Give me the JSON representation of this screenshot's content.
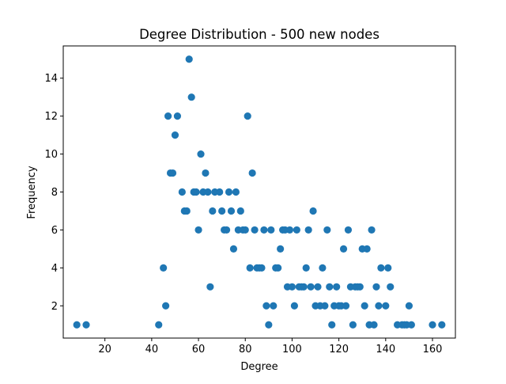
{
  "chart_data": {
    "type": "scatter",
    "title": "Degree Distribution - 500 new nodes",
    "xlabel": "Degree",
    "ylabel": "Frequency",
    "xlim": [
      2.2,
      169.8
    ],
    "ylim": [
      0.3,
      15.7
    ],
    "xticks": [
      20,
      40,
      60,
      80,
      100,
      120,
      140,
      160
    ],
    "yticks": [
      2,
      4,
      6,
      8,
      10,
      12,
      14
    ],
    "grid": false,
    "marker_color": "#1f77b4",
    "points": [
      [
        8,
        1
      ],
      [
        12,
        1
      ],
      [
        43,
        1
      ],
      [
        45,
        4
      ],
      [
        46,
        2
      ],
      [
        47,
        12
      ],
      [
        48,
        9
      ],
      [
        49,
        9
      ],
      [
        50,
        11
      ],
      [
        51,
        12
      ],
      [
        53,
        8
      ],
      [
        54,
        7
      ],
      [
        55,
        7
      ],
      [
        56,
        15
      ],
      [
        57,
        13
      ],
      [
        58,
        8
      ],
      [
        59,
        8
      ],
      [
        60,
        6
      ],
      [
        61,
        10
      ],
      [
        62,
        8
      ],
      [
        63,
        9
      ],
      [
        64,
        8
      ],
      [
        65,
        3
      ],
      [
        66,
        7
      ],
      [
        67,
        8
      ],
      [
        69,
        8
      ],
      [
        70,
        7
      ],
      [
        71,
        6
      ],
      [
        72,
        6
      ],
      [
        73,
        8
      ],
      [
        74,
        7
      ],
      [
        75,
        5
      ],
      [
        76,
        8
      ],
      [
        77,
        6
      ],
      [
        78,
        7
      ],
      [
        79,
        6
      ],
      [
        80,
        6
      ],
      [
        81,
        12
      ],
      [
        82,
        4
      ],
      [
        83,
        9
      ],
      [
        84,
        6
      ],
      [
        85,
        4
      ],
      [
        86,
        4
      ],
      [
        87,
        4
      ],
      [
        88,
        6
      ],
      [
        89,
        2
      ],
      [
        90,
        1
      ],
      [
        91,
        6
      ],
      [
        92,
        2
      ],
      [
        93,
        4
      ],
      [
        94,
        4
      ],
      [
        95,
        5
      ],
      [
        96,
        6
      ],
      [
        97,
        6
      ],
      [
        98,
        3
      ],
      [
        99,
        6
      ],
      [
        100,
        3
      ],
      [
        101,
        2
      ],
      [
        102,
        6
      ],
      [
        103,
        3
      ],
      [
        104,
        3
      ],
      [
        105,
        3
      ],
      [
        106,
        4
      ],
      [
        107,
        6
      ],
      [
        108,
        3
      ],
      [
        109,
        7
      ],
      [
        110,
        2
      ],
      [
        111,
        3
      ],
      [
        112,
        2
      ],
      [
        113,
        4
      ],
      [
        114,
        2
      ],
      [
        115,
        6
      ],
      [
        116,
        3
      ],
      [
        117,
        1
      ],
      [
        118,
        2
      ],
      [
        119,
        3
      ],
      [
        120,
        2
      ],
      [
        121,
        2
      ],
      [
        122,
        5
      ],
      [
        123,
        2
      ],
      [
        124,
        6
      ],
      [
        125,
        3
      ],
      [
        126,
        1
      ],
      [
        127,
        3
      ],
      [
        128,
        3
      ],
      [
        129,
        3
      ],
      [
        130,
        5
      ],
      [
        131,
        2
      ],
      [
        132,
        5
      ],
      [
        133,
        1
      ],
      [
        134,
        6
      ],
      [
        135,
        1
      ],
      [
        136,
        3
      ],
      [
        137,
        2
      ],
      [
        138,
        4
      ],
      [
        140,
        2
      ],
      [
        141,
        4
      ],
      [
        142,
        3
      ],
      [
        145,
        1
      ],
      [
        147,
        1
      ],
      [
        148,
        1
      ],
      [
        149,
        1
      ],
      [
        150,
        2
      ],
      [
        151,
        1
      ],
      [
        160,
        1
      ],
      [
        164,
        1
      ]
    ]
  }
}
